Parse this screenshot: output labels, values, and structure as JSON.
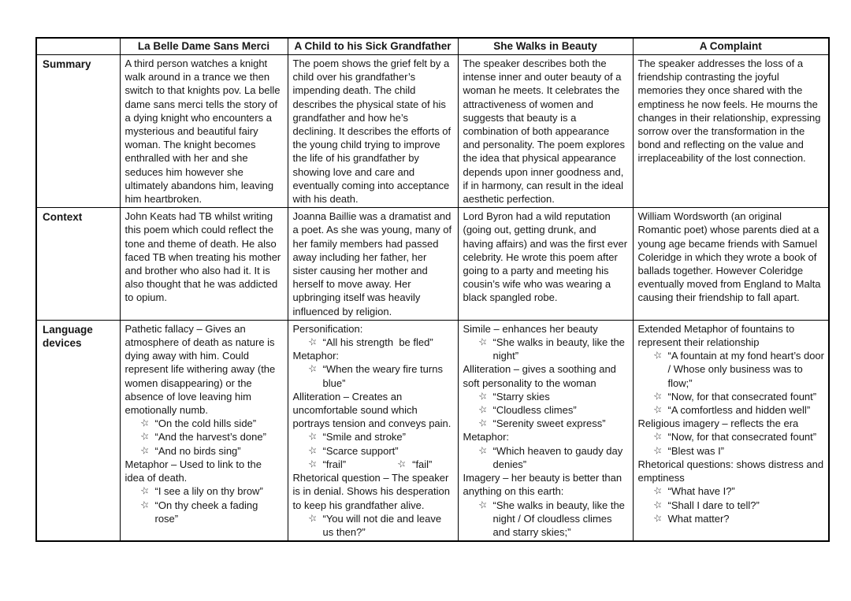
{
  "page": {
    "background": "#ffffff",
    "border_color": "#000000",
    "text_color": "#161616"
  },
  "icons": {
    "star": "☆"
  },
  "table": {
    "columns": [
      "La Belle Dame Sans Merci",
      "A Child to his Sick Grandfather",
      "She Walks in Beauty",
      "A Complaint"
    ],
    "row_labels": [
      "Summary",
      "Context",
      "Language devices"
    ],
    "summary": [
      "A third person watches a knight walk around in a trance we then switch to that knights pov. La belle dame sans merci tells the story of a dying knight who encounters a mysterious and beautiful fairy woman. The knight becomes enthralled with her and she seduces him however she ultimately abandons him, leaving him heartbroken.",
      "The poem shows the grief felt by a child over his grandfather’s impending death. The child describes the physical state of his grandfather and how he’s declining. It describes the efforts of the young child trying to improve the life of his grandfather by showing love and care and eventually coming into acceptance with his death.",
      "The speaker describes both the intense inner and outer beauty of a woman he meets. It celebrates the attractiveness of women and suggests that beauty is a combination of both appearance and personality. The poem explores the idea that physical appearance depends upon inner goodness and, if in harmony, can result in the ideal aesthetic perfection.",
      "The speaker addresses the loss of a friendship contrasting the joyful memories they once shared with the emptiness he now feels. He mourns the changes in their relationship, expressing sorrow over the transformation in the bond and reflecting on the value and irreplaceability of the lost connection."
    ],
    "context": [
      "John Keats had TB whilst writing this poem which could reflect the tone and theme of death. He also faced TB when treating his mother and brother who also had it. It is also thought that he was addicted to opium.",
      "Joanna Baillie was a dramatist and a poet. As she was young, many of her family members had passed away including her father, her sister causing her mother and herself to move away. Her upbringing itself was heavily influenced by religion.",
      "Lord Byron had a wild reputation (going out, getting drunk, and having affairs) and was the first ever celebrity. He wrote this poem after going to a party and meeting his cousin’s wife who was wearing a black spangled robe.",
      "William Wordsworth (an original Romantic poet) whose parents died at a young age became friends with Samuel Coleridge in which they wrote a book of ballads together. However Coleridge eventually moved from England to Malta causing their friendship to fall apart."
    ],
    "language_devices": [
      [
        {
          "t": "p",
          "text": "Pathetic fallacy – Gives an atmosphere of death as nature is dying away with him. Could represent life withering away (the women disappearing) or the absence of love leaving him emotionally numb."
        },
        {
          "t": "b",
          "text": "“On the cold hills side”"
        },
        {
          "t": "b",
          "text": "“And the harvest’s done”"
        },
        {
          "t": "b",
          "text": "“And no birds sing”"
        },
        {
          "t": "p",
          "text": "Metaphor – Used to link to the idea of death."
        },
        {
          "t": "b",
          "text": "“I see a lily on thy brow”"
        },
        {
          "t": "b",
          "text": "“On thy cheek a fading rose”"
        }
      ],
      [
        {
          "t": "p",
          "text": "Personification:"
        },
        {
          "t": "b",
          "text": "“All his strength  be fled”"
        },
        {
          "t": "p",
          "text": "Metaphor:"
        },
        {
          "t": "b",
          "text": "“When the weary fire turns blue”"
        },
        {
          "t": "p",
          "text": "Alliteration – Creates an uncomfortable sound which portrays tension and conveys pain."
        },
        {
          "t": "b",
          "text": "“Smile and stroke”"
        },
        {
          "t": "b",
          "text": "“Scarce support”"
        },
        {
          "t": "b2",
          "items": [
            "“frail”",
            "“fail”"
          ]
        },
        {
          "t": "p",
          "text": "Rhetorical question – The speaker is in denial. Shows his desperation to keep his grandfather alive."
        },
        {
          "t": "b",
          "text": "“You will not die and leave us then?”"
        }
      ],
      [
        {
          "t": "p",
          "text": "Simile – enhances her beauty"
        },
        {
          "t": "b",
          "text": "“She walks in beauty, like the night”"
        },
        {
          "t": "p",
          "text": "Alliteration – gives a soothing and soft personality to the woman"
        },
        {
          "t": "b",
          "text": "“Starry skies"
        },
        {
          "t": "b",
          "text": "“Cloudless climes”"
        },
        {
          "t": "b",
          "text": "“Serenity sweet express”"
        },
        {
          "t": "p",
          "text": "Metaphor:"
        },
        {
          "t": "b",
          "text": "“Which heaven to gaudy day denies”"
        },
        {
          "t": "p",
          "text": "Imagery – her beauty is better than anything on this earth:"
        },
        {
          "t": "b",
          "text": "“She walks in beauty, like the night / Of cloudless climes and starry skies;”"
        }
      ],
      [
        {
          "t": "p",
          "text": "Extended Metaphor of fountains to represent their relationship"
        },
        {
          "t": "b",
          "text": "“A fountain at my fond heart’s door / Whose only business was to flow;”"
        },
        {
          "t": "b",
          "text": "“Now, for that consecrated fount”"
        },
        {
          "t": "b",
          "text": "“A comfortless and hidden well”"
        },
        {
          "t": "p",
          "text": "Religious imagery – reflects the era"
        },
        {
          "t": "b",
          "text": "“Now, for that consecrated fount”"
        },
        {
          "t": "b",
          "text": "“Blest was I”"
        },
        {
          "t": "p",
          "text": "Rhetorical questions: shows distress and emptiness"
        },
        {
          "t": "b",
          "text": "“What have I?”"
        },
        {
          "t": "b",
          "text": "“Shall I dare to tell?”"
        },
        {
          "t": "b",
          "text": "What matter?"
        }
      ]
    ]
  }
}
